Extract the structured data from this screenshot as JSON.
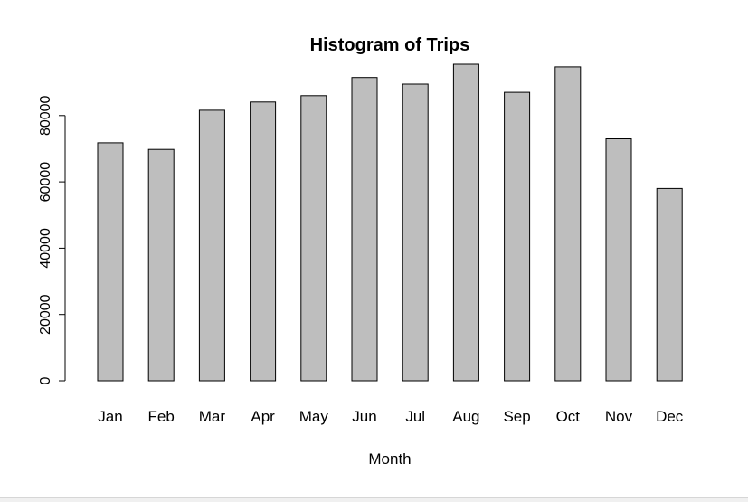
{
  "chart_data": {
    "type": "bar",
    "title": "Histogram of Trips",
    "xlabel": "Month",
    "ylabel": "",
    "categories": [
      "Jan",
      "Feb",
      "Mar",
      "Apr",
      "May",
      "Jun",
      "Jul",
      "Aug",
      "Sep",
      "Oct",
      "Nov",
      "Dec"
    ],
    "values": [
      71800,
      69800,
      81600,
      84100,
      86000,
      91500,
      89500,
      95500,
      87000,
      94700,
      73000,
      58000
    ],
    "yticks": [
      0,
      20000,
      40000,
      60000,
      80000
    ],
    "ytick_labels": [
      "0",
      "20000",
      "40000",
      "60000",
      "80000"
    ],
    "ylim": [
      0,
      95500
    ],
    "grid": false,
    "legend": "none",
    "colors": {
      "bar_fill": "#bebebe",
      "bar_stroke": "#000000",
      "axis": "#000000",
      "background": "#ffffff"
    }
  }
}
